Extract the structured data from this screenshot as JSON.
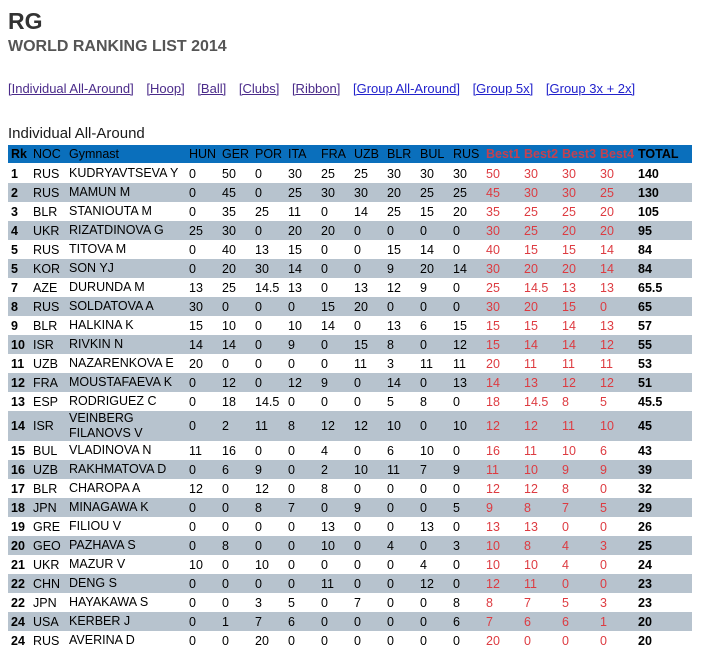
{
  "page": {
    "title": "RG",
    "subtitle": "WORLD RANKING LIST 2014",
    "section_heading": "Individual All-Around"
  },
  "nav": {
    "links": [
      {
        "label": "[Individual All-Around]",
        "visited": true
      },
      {
        "label": "[Hoop]",
        "visited": true
      },
      {
        "label": "[Ball]",
        "visited": true
      },
      {
        "label": "[Clubs]",
        "visited": true
      },
      {
        "label": "[Ribbon]",
        "visited": true
      },
      {
        "label": "[Group All-Around]",
        "visited": false
      },
      {
        "label": "[Group 5x]",
        "visited": false
      },
      {
        "label": "[Group 3x + 2x]",
        "visited": false
      }
    ]
  },
  "colors": {
    "header_bg": "#0A6FBC",
    "alt_row_bg": "#B7C3CE",
    "best_header_red": "#C5404F",
    "best_value_red": "#DD3B41",
    "link_blue": "#2222CC",
    "link_visited_purple": "#4B2B8A"
  },
  "table": {
    "columns": [
      "Rk",
      "NOC",
      "Gymnast",
      "HUN",
      "GER",
      "POR",
      "ITA",
      "FRA",
      "UZB",
      "BLR",
      "BUL",
      "RUS",
      "Best1",
      "Best2",
      "Best3",
      "Best4",
      "TOTAL"
    ],
    "rows": [
      {
        "rk": "1",
        "noc": "RUS",
        "gymnast": "KUDRYAVTSEVA Y",
        "scores": [
          "0",
          "50",
          "0",
          "30",
          "25",
          "25",
          "30",
          "30",
          "30"
        ],
        "best": [
          "50",
          "30",
          "30",
          "30"
        ],
        "total": "140"
      },
      {
        "rk": "2",
        "noc": "RUS",
        "gymnast": "MAMUN M",
        "scores": [
          "0",
          "45",
          "0",
          "25",
          "30",
          "30",
          "20",
          "25",
          "25"
        ],
        "best": [
          "45",
          "30",
          "30",
          "25"
        ],
        "total": "130"
      },
      {
        "rk": "3",
        "noc": "BLR",
        "gymnast": "STANIOUTA M",
        "scores": [
          "0",
          "35",
          "25",
          "11",
          "0",
          "14",
          "25",
          "15",
          "20"
        ],
        "best": [
          "35",
          "25",
          "25",
          "20"
        ],
        "total": "105"
      },
      {
        "rk": "4",
        "noc": "UKR",
        "gymnast": "RIZATDINOVA G",
        "scores": [
          "25",
          "30",
          "0",
          "20",
          "20",
          "0",
          "0",
          "0",
          "0"
        ],
        "best": [
          "30",
          "25",
          "20",
          "20"
        ],
        "total": "95"
      },
      {
        "rk": "5",
        "noc": "RUS",
        "gymnast": "TITOVA M",
        "scores": [
          "0",
          "40",
          "13",
          "15",
          "0",
          "0",
          "15",
          "14",
          "0"
        ],
        "best": [
          "40",
          "15",
          "15",
          "14"
        ],
        "total": "84"
      },
      {
        "rk": "5",
        "noc": "KOR",
        "gymnast": "SON YJ",
        "scores": [
          "0",
          "20",
          "30",
          "14",
          "0",
          "0",
          "9",
          "20",
          "14"
        ],
        "best": [
          "30",
          "20",
          "20",
          "14"
        ],
        "total": "84"
      },
      {
        "rk": "7",
        "noc": "AZE",
        "gymnast": "DURUNDA M",
        "scores": [
          "13",
          "25",
          "14.5",
          "13",
          "0",
          "13",
          "12",
          "9",
          "0"
        ],
        "best": [
          "25",
          "14.5",
          "13",
          "13"
        ],
        "total": "65.5"
      },
      {
        "rk": "8",
        "noc": "RUS",
        "gymnast": "SOLDATOVA A",
        "scores": [
          "30",
          "0",
          "0",
          "0",
          "15",
          "20",
          "0",
          "0",
          "0"
        ],
        "best": [
          "30",
          "20",
          "15",
          "0"
        ],
        "total": "65"
      },
      {
        "rk": "9",
        "noc": "BLR",
        "gymnast": "HALKINA K",
        "scores": [
          "15",
          "10",
          "0",
          "10",
          "14",
          "0",
          "13",
          "6",
          "15"
        ],
        "best": [
          "15",
          "15",
          "14",
          "13"
        ],
        "total": "57"
      },
      {
        "rk": "10",
        "noc": "ISR",
        "gymnast": "RIVKIN N",
        "scores": [
          "14",
          "14",
          "0",
          "9",
          "0",
          "15",
          "8",
          "0",
          "12"
        ],
        "best": [
          "15",
          "14",
          "14",
          "12"
        ],
        "total": "55"
      },
      {
        "rk": "11",
        "noc": "UZB",
        "gymnast": "NAZARENKOVA E",
        "scores": [
          "20",
          "0",
          "0",
          "0",
          "0",
          "11",
          "3",
          "11",
          "11"
        ],
        "best": [
          "20",
          "11",
          "11",
          "11"
        ],
        "total": "53"
      },
      {
        "rk": "12",
        "noc": "FRA",
        "gymnast": "MOUSTAFAEVA K",
        "scores": [
          "0",
          "12",
          "0",
          "12",
          "9",
          "0",
          "14",
          "0",
          "13"
        ],
        "best": [
          "14",
          "13",
          "12",
          "12"
        ],
        "total": "51"
      },
      {
        "rk": "13",
        "noc": "ESP",
        "gymnast": "RODRIGUEZ C",
        "scores": [
          "0",
          "18",
          "14.5",
          "0",
          "0",
          "0",
          "5",
          "8",
          "0"
        ],
        "best": [
          "18",
          "14.5",
          "8",
          "5"
        ],
        "total": "45.5"
      },
      {
        "rk": "14",
        "noc": "ISR",
        "gymnast": "VEINBERG FILANOVS V",
        "scores": [
          "0",
          "2",
          "11",
          "8",
          "12",
          "12",
          "10",
          "0",
          "10"
        ],
        "best": [
          "12",
          "12",
          "11",
          "10"
        ],
        "total": "45"
      },
      {
        "rk": "15",
        "noc": "BUL",
        "gymnast": "VLADINOVA N",
        "scores": [
          "11",
          "16",
          "0",
          "0",
          "4",
          "0",
          "6",
          "10",
          "0"
        ],
        "best": [
          "16",
          "11",
          "10",
          "6"
        ],
        "total": "43"
      },
      {
        "rk": "16",
        "noc": "UZB",
        "gymnast": "RAKHMATOVA D",
        "scores": [
          "0",
          "6",
          "9",
          "0",
          "2",
          "10",
          "11",
          "7",
          "9"
        ],
        "best": [
          "11",
          "10",
          "9",
          "9"
        ],
        "total": "39"
      },
      {
        "rk": "17",
        "noc": "BLR",
        "gymnast": "CHAROPA A",
        "scores": [
          "12",
          "0",
          "12",
          "0",
          "8",
          "0",
          "0",
          "0",
          "0"
        ],
        "best": [
          "12",
          "12",
          "8",
          "0"
        ],
        "total": "32"
      },
      {
        "rk": "18",
        "noc": "JPN",
        "gymnast": "MINAGAWA K",
        "scores": [
          "0",
          "0",
          "8",
          "7",
          "0",
          "9",
          "0",
          "0",
          "5"
        ],
        "best": [
          "9",
          "8",
          "7",
          "5"
        ],
        "total": "29"
      },
      {
        "rk": "19",
        "noc": "GRE",
        "gymnast": "FILIOU V",
        "scores": [
          "0",
          "0",
          "0",
          "0",
          "13",
          "0",
          "0",
          "13",
          "0"
        ],
        "best": [
          "13",
          "13",
          "0",
          "0"
        ],
        "total": "26"
      },
      {
        "rk": "20",
        "noc": "GEO",
        "gymnast": "PAZHAVA S",
        "scores": [
          "0",
          "8",
          "0",
          "0",
          "10",
          "0",
          "4",
          "0",
          "3"
        ],
        "best": [
          "10",
          "8",
          "4",
          "3"
        ],
        "total": "25"
      },
      {
        "rk": "21",
        "noc": "UKR",
        "gymnast": "MAZUR V",
        "scores": [
          "10",
          "0",
          "10",
          "0",
          "0",
          "0",
          "0",
          "4",
          "0"
        ],
        "best": [
          "10",
          "10",
          "4",
          "0"
        ],
        "total": "24"
      },
      {
        "rk": "22",
        "noc": "CHN",
        "gymnast": "DENG S",
        "scores": [
          "0",
          "0",
          "0",
          "0",
          "11",
          "0",
          "0",
          "12",
          "0"
        ],
        "best": [
          "12",
          "11",
          "0",
          "0"
        ],
        "total": "23"
      },
      {
        "rk": "22",
        "noc": "JPN",
        "gymnast": "HAYAKAWA S",
        "scores": [
          "0",
          "0",
          "3",
          "5",
          "0",
          "7",
          "0",
          "0",
          "8"
        ],
        "best": [
          "8",
          "7",
          "5",
          "3"
        ],
        "total": "23"
      },
      {
        "rk": "24",
        "noc": "USA",
        "gymnast": "KERBER J",
        "scores": [
          "0",
          "1",
          "7",
          "6",
          "0",
          "0",
          "0",
          "0",
          "6"
        ],
        "best": [
          "7",
          "6",
          "6",
          "1"
        ],
        "total": "20"
      },
      {
        "rk": "24",
        "noc": "RUS",
        "gymnast": "AVERINA D",
        "scores": [
          "0",
          "0",
          "20",
          "0",
          "0",
          "0",
          "0",
          "0",
          "0"
        ],
        "best": [
          "20",
          "0",
          "0",
          "0"
        ],
        "total": "20"
      }
    ]
  }
}
